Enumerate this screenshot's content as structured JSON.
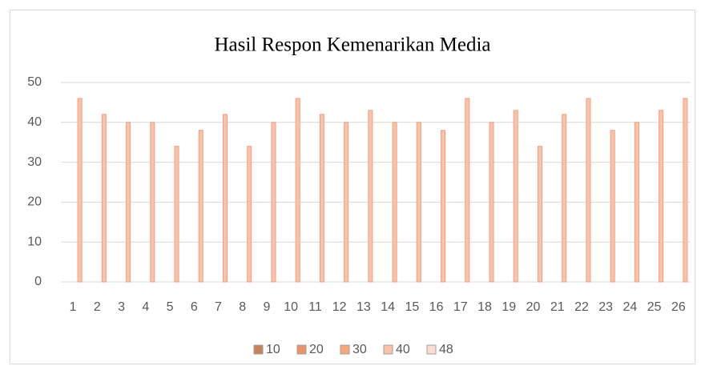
{
  "chart_data": {
    "type": "bar",
    "title": "Hasil Respon Kemenarikan Media",
    "categories": [
      "1",
      "2",
      "3",
      "4",
      "5",
      "6",
      "7",
      "8",
      "9",
      "10",
      "11",
      "12",
      "13",
      "14",
      "15",
      "16",
      "17",
      "18",
      "19",
      "20",
      "21",
      "22",
      "23",
      "24",
      "25",
      "26"
    ],
    "series": [
      {
        "name": "10",
        "color": "#c9825e",
        "values": [
          null,
          null,
          null,
          null,
          null,
          null,
          null,
          null,
          null,
          null,
          null,
          null,
          null,
          null,
          null,
          null,
          null,
          null,
          null,
          null,
          null,
          null,
          null,
          null,
          null,
          null
        ]
      },
      {
        "name": "20",
        "color": "#ea9468",
        "values": [
          null,
          null,
          null,
          null,
          null,
          null,
          null,
          null,
          null,
          null,
          null,
          null,
          null,
          null,
          null,
          null,
          null,
          null,
          null,
          null,
          null,
          null,
          null,
          null,
          null,
          null
        ]
      },
      {
        "name": "30",
        "color": "#f6a878",
        "values": [
          null,
          null,
          null,
          null,
          null,
          null,
          null,
          null,
          null,
          null,
          null,
          null,
          null,
          null,
          null,
          null,
          null,
          null,
          null,
          null,
          null,
          null,
          null,
          null,
          null,
          null
        ]
      },
      {
        "name": "40",
        "color": "#f8c3aa",
        "values": [
          46,
          42,
          40,
          40,
          34,
          38,
          42,
          34,
          40,
          46,
          42,
          40,
          43,
          40,
          40,
          38,
          46,
          40,
          43,
          34,
          42,
          46,
          38,
          40,
          43,
          46
        ]
      },
      {
        "name": "48",
        "color": "#fbdcd0",
        "values": [
          null,
          null,
          null,
          null,
          null,
          null,
          null,
          null,
          null,
          null,
          null,
          null,
          null,
          null,
          null,
          null,
          null,
          null,
          null,
          null,
          null,
          null,
          null,
          null,
          null,
          null
        ]
      }
    ],
    "ylim": [
      0,
      50
    ],
    "yticks": [
      0,
      10,
      20,
      30,
      40,
      50
    ],
    "grid": true,
    "legend": "bottom"
  }
}
